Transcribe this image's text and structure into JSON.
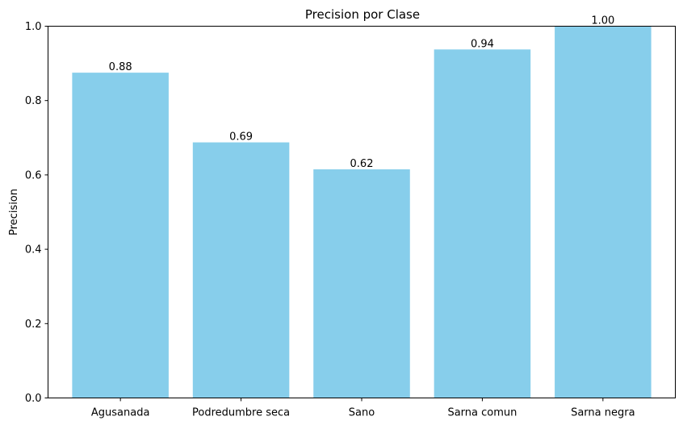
{
  "chart_data": {
    "type": "bar",
    "title": "Precision por Clase",
    "xlabel": "",
    "ylabel": "Precision",
    "categories": [
      "Agusanada",
      "Podredumbre seca",
      "Sano",
      "Sarna comun",
      "Sarna negra"
    ],
    "values": [
      0.875,
      0.6875,
      0.615,
      0.9375,
      1.0
    ],
    "value_labels": [
      "0.88",
      "0.69",
      "0.62",
      "0.94",
      "1.00"
    ],
    "ylim": [
      0,
      1.0
    ],
    "yticks": [
      0.0,
      0.2,
      0.4,
      0.6,
      0.8,
      1.0
    ],
    "ytick_labels": [
      "0.0",
      "0.2",
      "0.4",
      "0.6",
      "0.8",
      "1.0"
    ],
    "grid": false,
    "legend": "none",
    "bar_color": "#87CEEB"
  }
}
